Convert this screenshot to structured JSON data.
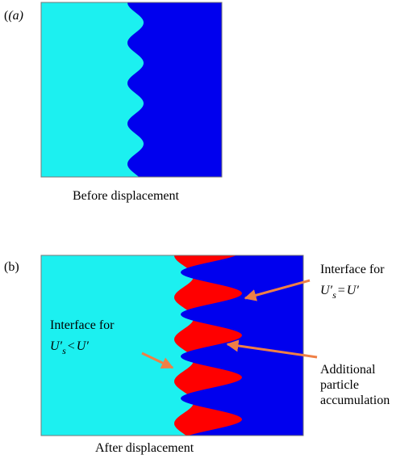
{
  "panel_a": {
    "label": "(a)",
    "caption": "Before displacement"
  },
  "panel_b": {
    "label": "(b)",
    "caption": "After displacement",
    "annotations": [
      {
        "text": "Interface for",
        "formula": {
          "lhs": "U′",
          "sub": "s",
          "op": "=",
          "rhs": "U′"
        }
      },
      {
        "text": "Interface for",
        "formula": {
          "lhs": "U′",
          "sub": "s",
          "op": "<",
          "rhs": "U′"
        }
      },
      {
        "lines": [
          "Additional",
          "particle",
          "accumulation"
        ]
      }
    ]
  }
}
